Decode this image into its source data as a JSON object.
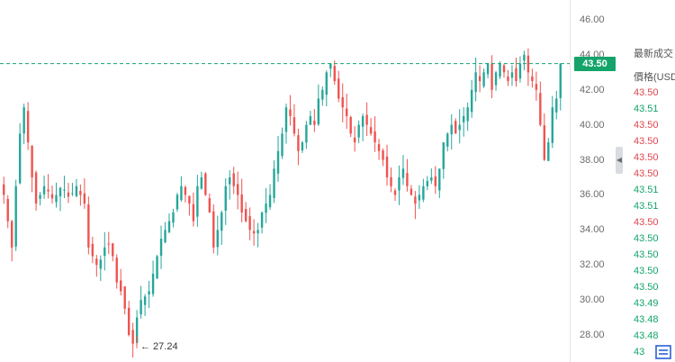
{
  "chart_data": {
    "type": "candlestick",
    "symbol_price_label": "43.50",
    "y_ticks": [
      "46.00",
      "44.00",
      "42.00",
      "40.00",
      "38.00",
      "36.00",
      "34.00",
      "32.00",
      "30.00",
      "28.00"
    ],
    "ylim": [
      27.0,
      47.2
    ],
    "current_price": 43.5,
    "low_annotation": "← 27.24",
    "low_value": 27.24,
    "up_color": "#26a69a",
    "down_color": "#ef5350",
    "grid": false,
    "close_series": [
      36.0,
      34.5,
      33.0,
      36.5,
      39.5,
      41.0,
      39.0,
      37.0,
      35.5,
      36.0,
      36.5,
      36.2,
      35.8,
      36.0,
      36.4,
      36.3,
      35.9,
      36.1,
      36.5,
      36.0,
      35.5,
      33.0,
      32.5,
      32.0,
      32.3,
      33.0,
      33.2,
      32.5,
      31.0,
      30.5,
      29.5,
      28.0,
      27.5,
      29.0,
      30.0,
      30.2,
      30.5,
      31.5,
      32.5,
      33.5,
      34.0,
      34.5,
      35.0,
      36.0,
      36.5,
      36.0,
      35.5,
      34.5,
      36.5,
      37.0,
      36.0,
      35.0,
      33.0,
      34.0,
      35.0,
      36.5,
      37.0,
      36.5,
      36.0,
      35.0,
      34.5,
      34.0,
      33.8,
      34.0,
      35.0,
      35.5,
      36.0,
      37.5,
      38.5,
      39.5,
      41.0,
      40.5,
      39.5,
      38.5,
      39.0,
      40.0,
      40.5,
      40.0,
      41.5,
      42.0,
      43.0,
      43.5,
      42.5,
      41.5,
      41.0,
      40.5,
      39.5,
      39.0,
      40.0,
      40.5,
      40.0,
      39.5,
      39.0,
      38.5,
      38.0,
      37.0,
      36.5,
      36.0,
      37.0,
      37.5,
      36.5,
      36.0,
      35.5,
      36.0,
      36.5,
      36.8,
      37.0,
      36.5,
      37.5,
      39.0,
      39.5,
      40.0,
      39.5,
      40.0,
      40.5,
      41.0,
      42.0,
      43.0,
      42.5,
      43.0,
      43.5,
      42.0,
      43.0,
      43.5,
      43.0,
      42.5,
      43.0,
      42.5,
      43.5,
      44.0,
      43.0,
      42.5,
      42.0,
      40.0,
      38.0,
      39.0,
      41.0,
      41.5,
      43.5
    ]
  },
  "trades_panel": {
    "header_title": "最新成交",
    "header_price": "價格(USDT)",
    "collapse_icon": "◀",
    "rows": [
      {
        "price": "43.50",
        "side": "sell"
      },
      {
        "price": "43.51",
        "side": "buy"
      },
      {
        "price": "43.50",
        "side": "sell"
      },
      {
        "price": "43.50",
        "side": "sell"
      },
      {
        "price": "43.50",
        "side": "sell"
      },
      {
        "price": "43.50",
        "side": "sell"
      },
      {
        "price": "43.51",
        "side": "buy"
      },
      {
        "price": "43.51",
        "side": "buy"
      },
      {
        "price": "43.50",
        "side": "sell"
      },
      {
        "price": "43.50",
        "side": "buy"
      },
      {
        "price": "43.50",
        "side": "buy"
      },
      {
        "price": "43.50",
        "side": "buy"
      },
      {
        "price": "43.50",
        "side": "buy"
      },
      {
        "price": "43.49",
        "side": "buy"
      },
      {
        "price": "43.48",
        "side": "buy"
      },
      {
        "price": "43.48",
        "side": "buy"
      },
      {
        "price": "43",
        "side": "buy"
      }
    ],
    "colors": {
      "buy": "#14a46a",
      "sell": "#e0464e"
    }
  },
  "view_button_icon": "list-view-icon"
}
